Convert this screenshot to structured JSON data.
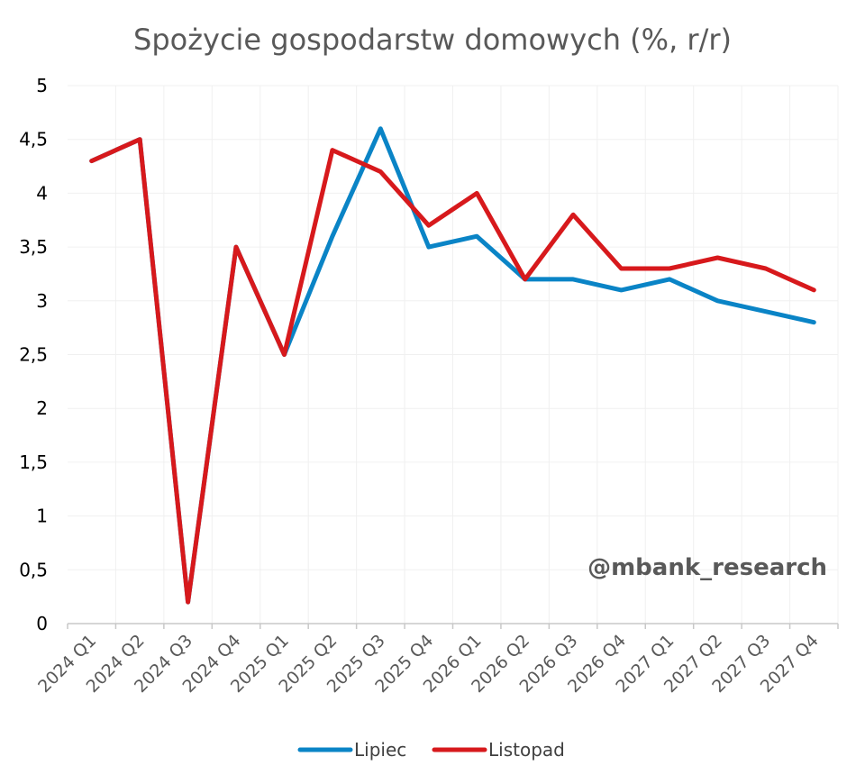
{
  "chart_data": {
    "type": "line",
    "title": "Spożycie gospodarstw domowych (%, r/r)",
    "xlabel": "",
    "ylabel": "",
    "categories": [
      "2024 Q1",
      "2024 Q2",
      "2024 Q3",
      "2024 Q4",
      "2025 Q1",
      "2025 Q2",
      "2025 Q3",
      "2025 Q4",
      "2026 Q1",
      "2026 Q2",
      "2026 Q3",
      "2026 Q4",
      "2027 Q1",
      "2027 Q2",
      "2027 Q3",
      "2027 Q4"
    ],
    "series": [
      {
        "name": "Lipiec",
        "color": "#0a84c6",
        "values": [
          4.3,
          4.5,
          0.2,
          3.5,
          2.5,
          3.6,
          4.6,
          3.5,
          3.6,
          3.2,
          3.2,
          3.1,
          3.2,
          3.0,
          2.9,
          2.8
        ]
      },
      {
        "name": "Listopad",
        "color": "#d7191c",
        "values": [
          4.3,
          4.5,
          0.2,
          3.5,
          2.5,
          4.4,
          4.2,
          3.7,
          4.0,
          3.2,
          3.8,
          3.3,
          3.3,
          3.4,
          3.3,
          3.1
        ]
      }
    ],
    "ylim": [
      0,
      5
    ],
    "yticks": [
      "0",
      "0,5",
      "1",
      "1,5",
      "2",
      "2,5",
      "3",
      "3,5",
      "4",
      "4,5",
      "5"
    ],
    "grid": true,
    "legend_position": "bottom",
    "annotation": "@mbank_research"
  }
}
